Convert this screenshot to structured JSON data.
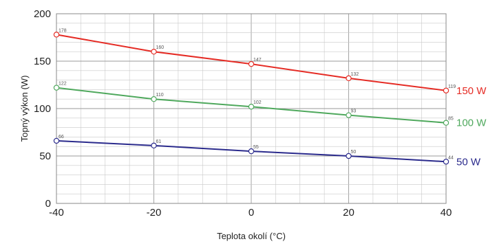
{
  "chart_data": {
    "type": "line",
    "title": "",
    "xlabel": "Teplota okolí (°C)",
    "ylabel": "Topný výkon (W)",
    "x": [
      -40,
      -20,
      0,
      20,
      40
    ],
    "x_ticks": [
      "-40",
      "-20",
      "0",
      "20",
      "40"
    ],
    "y_ticks": [
      "0",
      "50",
      "100",
      "150",
      "200"
    ],
    "xlim": [
      -40,
      40
    ],
    "ylim": [
      0,
      200
    ],
    "grid": true,
    "legend_placement": "right, next to the line ends",
    "series": [
      {
        "name": "150 W",
        "color": "#e52b24",
        "values": [
          178,
          160,
          147,
          132,
          119
        ],
        "labels": [
          "178",
          "160",
          "147",
          "132",
          "119"
        ]
      },
      {
        "name": "100 W",
        "color": "#4ea85c",
        "values": [
          122,
          110,
          102,
          93,
          85
        ],
        "labels": [
          "122",
          "110",
          "102",
          "93",
          "85"
        ]
      },
      {
        "name": "50 W",
        "color": "#2a2a8c",
        "values": [
          66,
          61,
          55,
          50,
          44
        ],
        "labels": [
          "66",
          "61",
          "55",
          "50",
          "44"
        ]
      }
    ]
  }
}
